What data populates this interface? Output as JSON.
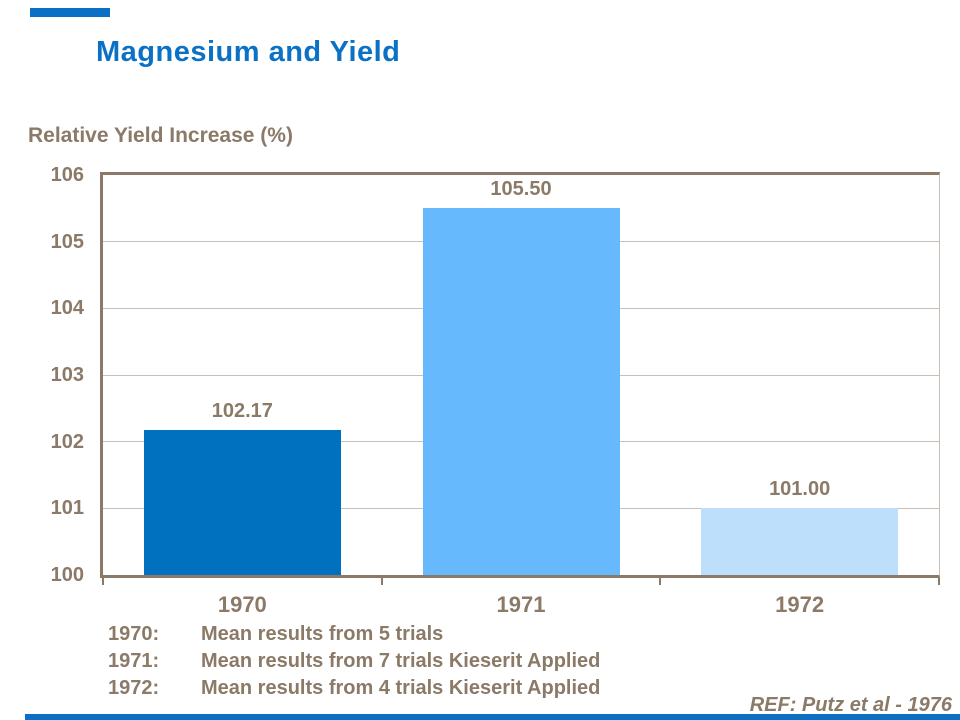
{
  "slide": {
    "title": "Magnesium and Yield",
    "title_color": "#0B71C5",
    "accent_color": "#0B70C4",
    "ref_note": "REF: Putz et al - 1976"
  },
  "chart_data": {
    "type": "bar",
    "title": "Magnesium and Yield",
    "ylabel": "Relative Yield Increase (%)",
    "xlabel": "",
    "categories": [
      "1970",
      "1971",
      "1972"
    ],
    "values": [
      102.17,
      105.5,
      101.0
    ],
    "value_labels": [
      "102.17",
      "105.50",
      "101.00"
    ],
    "bar_colors": [
      "#0071BE",
      "#66B9FC",
      "#BEDFFB"
    ],
    "ylim": [
      100,
      106
    ],
    "yticks": [
      100,
      101,
      102,
      103,
      104,
      105,
      106
    ],
    "grid": "horizontal",
    "legend": "none",
    "text_color": "#8A7A67",
    "axis_color": "#8A7A67",
    "gridline_color": "#C8C0B6"
  },
  "footnotes": [
    {
      "year_label": "1970:",
      "text": "Mean results from 5 trials"
    },
    {
      "year_label": "1971:",
      "text": "Mean results from 7 trials Kieserit Applied"
    },
    {
      "year_label": "1972:",
      "text": "Mean results from 4 trials Kieserit Applied"
    }
  ]
}
